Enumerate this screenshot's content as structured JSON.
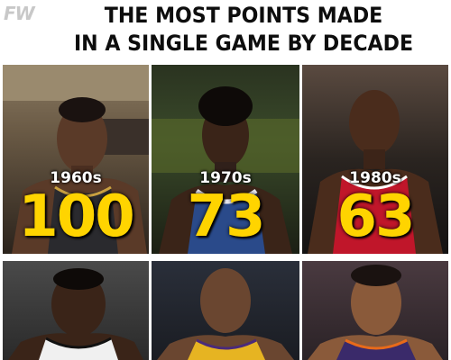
{
  "header": {
    "logo": "FW",
    "title_line1": "THE MOST POINTS MADE",
    "title_line2": "IN A SINGLE GAME BY DECADE"
  },
  "cards": [
    {
      "decade": "1960s",
      "points": "100"
    },
    {
      "decade": "1970s",
      "points": "73"
    },
    {
      "decade": "1980s",
      "points": "63"
    },
    {
      "decade": "",
      "points": ""
    },
    {
      "decade": "",
      "points": ""
    },
    {
      "decade": "",
      "points": ""
    }
  ]
}
